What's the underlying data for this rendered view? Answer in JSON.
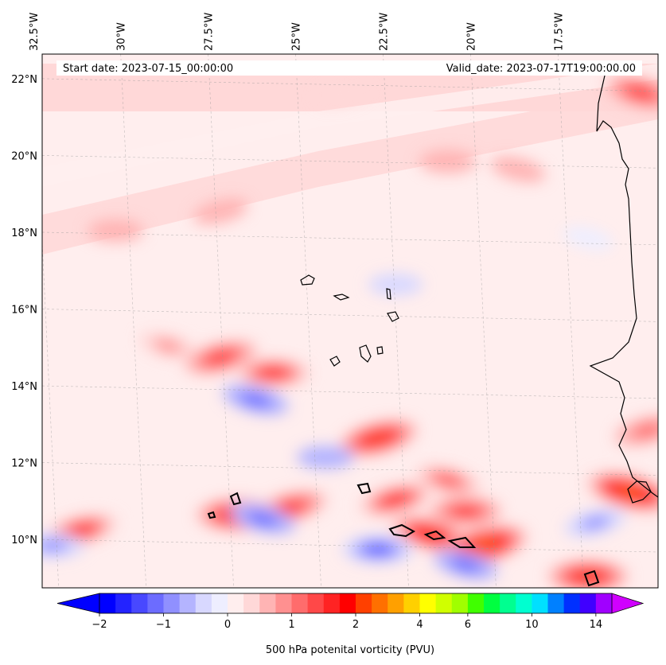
{
  "chart_data": {
    "type": "heatmap",
    "title": "",
    "start_label": "Start date: 2023-07-15_00:00:00",
    "valid_label": "Valid_date: 2023-07-17T19:00:00.00",
    "lon_ticks": [
      "32.5°W",
      "30°W",
      "27.5°W",
      "25°W",
      "22.5°W",
      "20°W",
      "17.5°W"
    ],
    "lon_values": [
      -32.5,
      -30,
      -27.5,
      -25,
      -22.5,
      -20,
      -17.5
    ],
    "lat_ticks": [
      "22°N",
      "20°N",
      "18°N",
      "16°N",
      "14°N",
      "12°N",
      "10°N"
    ],
    "lat_values": [
      22,
      20,
      18,
      16,
      14,
      12,
      10
    ],
    "lon_range": [
      -32.6,
      -15.0
    ],
    "lat_range": [
      8.9,
      22.8
    ],
    "colorbar": {
      "label": "500 hPa potenital vorticity (PVU)",
      "tick_labels": [
        "−2",
        "−1",
        "0",
        "1",
        "2",
        "4",
        "6",
        "10",
        "14"
      ],
      "tick_values": [
        -2,
        -1,
        0,
        1,
        2,
        4,
        6,
        10,
        14
      ],
      "extend": "both",
      "colors": [
        "#0000ff",
        "#2323ff",
        "#4848ff",
        "#6c6cff",
        "#9090ff",
        "#b4b4ff",
        "#d8d8ff",
        "#eeeeff",
        "#ffeeee",
        "#ffd8d8",
        "#ffb4b4",
        "#ff9090",
        "#ff6c6c",
        "#ff4848",
        "#ff2323",
        "#ff0000",
        "#ff4000",
        "#ff7000",
        "#ffa000",
        "#ffd000",
        "#ffff00",
        "#d0ff00",
        "#a0ff00",
        "#40ff00",
        "#00ff40",
        "#00ff90",
        "#00ffd0",
        "#00e0ff",
        "#0080ff",
        "#0030ff",
        "#4000ff",
        "#a000ff"
      ],
      "under_color": "#0000ff",
      "over_color": "#d000ff"
    },
    "field": {
      "background_pvu": 0.1,
      "features": [
        {
          "lon": -24.0,
          "lat": 21.8,
          "pvu": 0.4
        },
        {
          "lon": -21.0,
          "lat": 20.0,
          "pvu": 0.6
        },
        {
          "lon": -19.0,
          "lat": 19.8,
          "pvu": 0.5
        },
        {
          "lon": -27.5,
          "lat": 18.7,
          "pvu": 0.5
        },
        {
          "lon": -30.5,
          "lat": 18.2,
          "pvu": 0.5
        },
        {
          "lon": -29.0,
          "lat": 15.2,
          "pvu": 0.8
        },
        {
          "lon": -27.5,
          "lat": 14.9,
          "pvu": 1.6
        },
        {
          "lon": -26.0,
          "lat": 14.5,
          "pvu": 1.8
        },
        {
          "lon": -26.5,
          "lat": 13.8,
          "pvu": -1.2
        },
        {
          "lon": -23.0,
          "lat": 12.8,
          "pvu": 2.0
        },
        {
          "lon": -24.5,
          "lat": 12.3,
          "pvu": -0.6
        },
        {
          "lon": -21.0,
          "lat": 11.7,
          "pvu": 1.4
        },
        {
          "lon": -22.5,
          "lat": 11.2,
          "pvu": 1.8
        },
        {
          "lon": -20.5,
          "lat": 10.9,
          "pvu": 1.5
        },
        {
          "lon": -21.5,
          "lat": 10.3,
          "pvu": 2.4
        },
        {
          "lon": -20.0,
          "lat": 10.0,
          "pvu": 2.6
        },
        {
          "lon": -23.0,
          "lat": 9.9,
          "pvu": -1.5
        },
        {
          "lon": -20.5,
          "lat": 9.5,
          "pvu": -1.1
        },
        {
          "lon": -25.5,
          "lat": 11.0,
          "pvu": 1.5
        },
        {
          "lon": -27.0,
          "lat": 10.8,
          "pvu": 2.2
        },
        {
          "lon": -26.3,
          "lat": 10.7,
          "pvu": -1.2
        },
        {
          "lon": -31.5,
          "lat": 10.4,
          "pvu": 1.8
        },
        {
          "lon": -32.3,
          "lat": 10.0,
          "pvu": -1.0
        },
        {
          "lon": -15.8,
          "lat": 11.4,
          "pvu": 2.8
        },
        {
          "lon": -16.8,
          "lat": 10.6,
          "pvu": -0.9
        },
        {
          "lon": -17.0,
          "lat": 9.2,
          "pvu": 2.0
        },
        {
          "lon": -15.5,
          "lat": 21.8,
          "pvu": 1.5
        },
        {
          "lon": -15.3,
          "lat": 13.0,
          "pvu": 1.2
        },
        {
          "lon": -22.5,
          "lat": 16.8,
          "pvu": -0.4
        },
        {
          "lon": -17.0,
          "lat": 18.0,
          "pvu": -0.2
        }
      ]
    }
  }
}
